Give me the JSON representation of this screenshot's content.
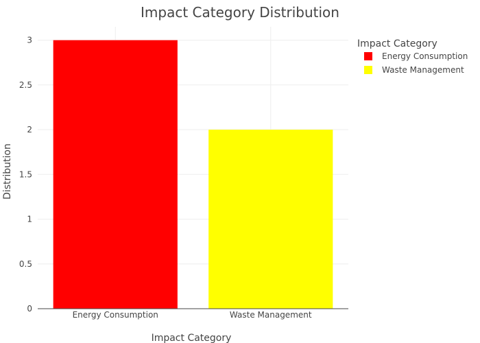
{
  "chart_data": {
    "type": "bar",
    "title": "Impact Category Distribution",
    "xlabel": "Impact Category",
    "ylabel": "Distribution",
    "categories": [
      "Energy Consumption",
      "Waste Management"
    ],
    "values": [
      3,
      2
    ],
    "colors": [
      "#ff0000",
      "#ffff00"
    ],
    "ylim": [
      0,
      3.15
    ],
    "yticks": [
      0,
      0.5,
      1,
      1.5,
      2,
      2.5,
      3
    ],
    "ytick_labels": [
      "0",
      "0.5",
      "1",
      "1.5",
      "2",
      "2.5",
      "3"
    ],
    "grid": true,
    "legend": {
      "title": "Impact Category",
      "position": "top-right",
      "entries": [
        "Energy Consumption",
        "Waste Management"
      ]
    }
  }
}
